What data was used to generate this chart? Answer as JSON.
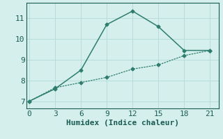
{
  "line1_x": [
    0,
    3,
    6,
    9,
    12,
    15,
    18,
    21
  ],
  "line1_y": [
    7.0,
    7.6,
    8.5,
    10.7,
    11.35,
    10.6,
    9.45,
    9.45
  ],
  "line2_x": [
    0,
    3,
    6,
    9,
    12,
    15,
    18,
    21
  ],
  "line2_y": [
    7.0,
    7.65,
    7.9,
    8.15,
    8.55,
    8.75,
    9.2,
    9.45
  ],
  "line_color": "#2e7d6e",
  "bg_color": "#d4efec",
  "grid_color": "#b8ddd8",
  "xlabel": "Humidex (Indice chaleur)",
  "xticks": [
    0,
    3,
    6,
    9,
    12,
    15,
    18,
    21
  ],
  "yticks": [
    7,
    8,
    9,
    10,
    11
  ],
  "xlim": [
    -0.3,
    22.0
  ],
  "ylim": [
    6.65,
    11.75
  ],
  "marker": "D",
  "markersize": 2.5,
  "linewidth1": 1.1,
  "linewidth2": 0.9,
  "font_color": "#1a5c52",
  "xlabel_fontsize": 8,
  "tick_fontsize": 8
}
